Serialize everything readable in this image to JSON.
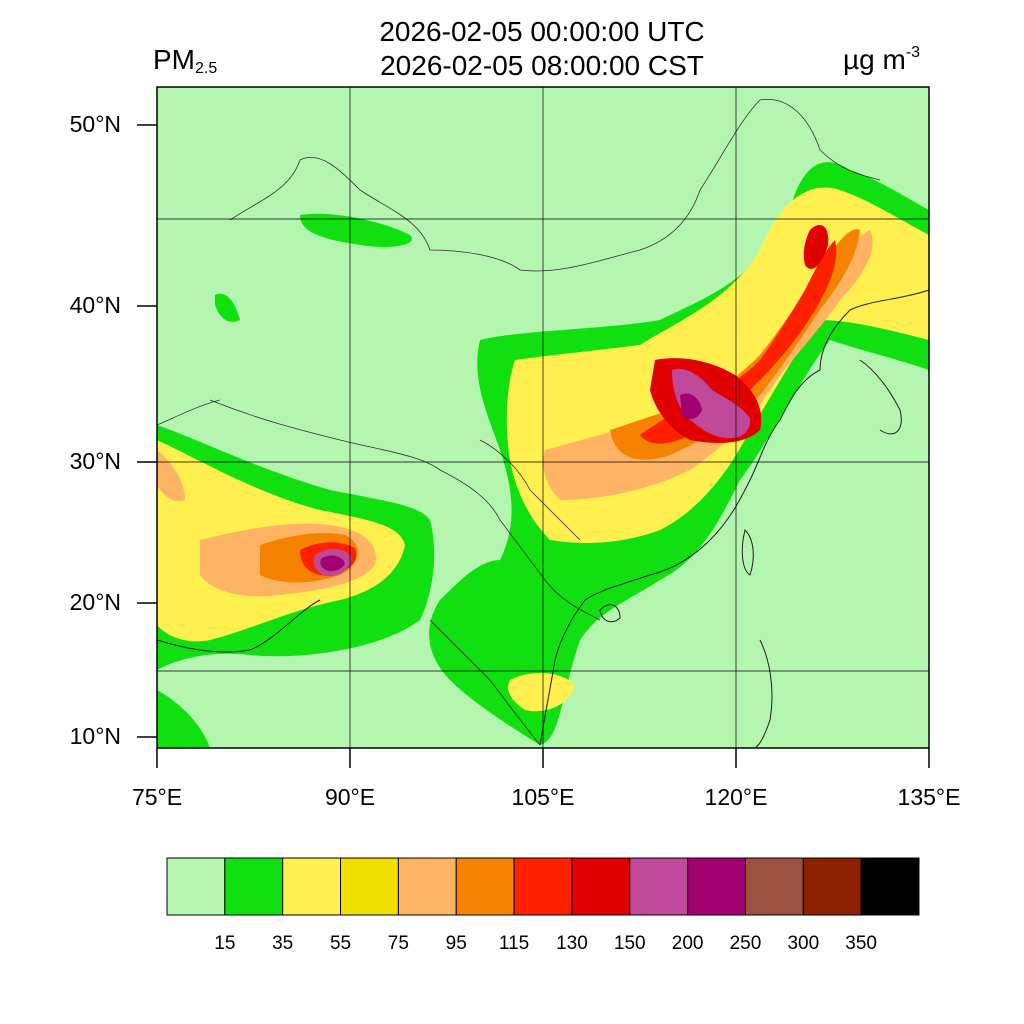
{
  "title": {
    "line1": "2026-02-05 00:00:00 UTC",
    "line2": "2026-02-05 08:00:00 CST"
  },
  "variable": {
    "name": "PM",
    "subscript": "2.5"
  },
  "unit": {
    "base": "µg m",
    "exponent": "-3"
  },
  "map": {
    "background_color": "#b4f6b0",
    "lon_range": [
      75,
      135
    ],
    "lat_range": [
      9,
      52
    ],
    "lat_ticks": [
      "50°N",
      "40°N",
      "30°N",
      "20°N",
      "10°N"
    ],
    "lon_ticks": [
      "75°E",
      "90°E",
      "105°E",
      "120°E",
      "135°E"
    ]
  },
  "colorbar": {
    "colors": [
      "#b4f6b0",
      "#10e010",
      "#fff050",
      "#f2e000",
      "#ffb464",
      "#f58200",
      "#ff2000",
      "#e00000",
      "#c04898",
      "#a00070",
      "#9c5040",
      "#8c2000",
      "#000000"
    ],
    "labels": [
      "15",
      "35",
      "55",
      "75",
      "95",
      "115",
      "130",
      "150",
      "200",
      "250",
      "300",
      "350"
    ]
  }
}
